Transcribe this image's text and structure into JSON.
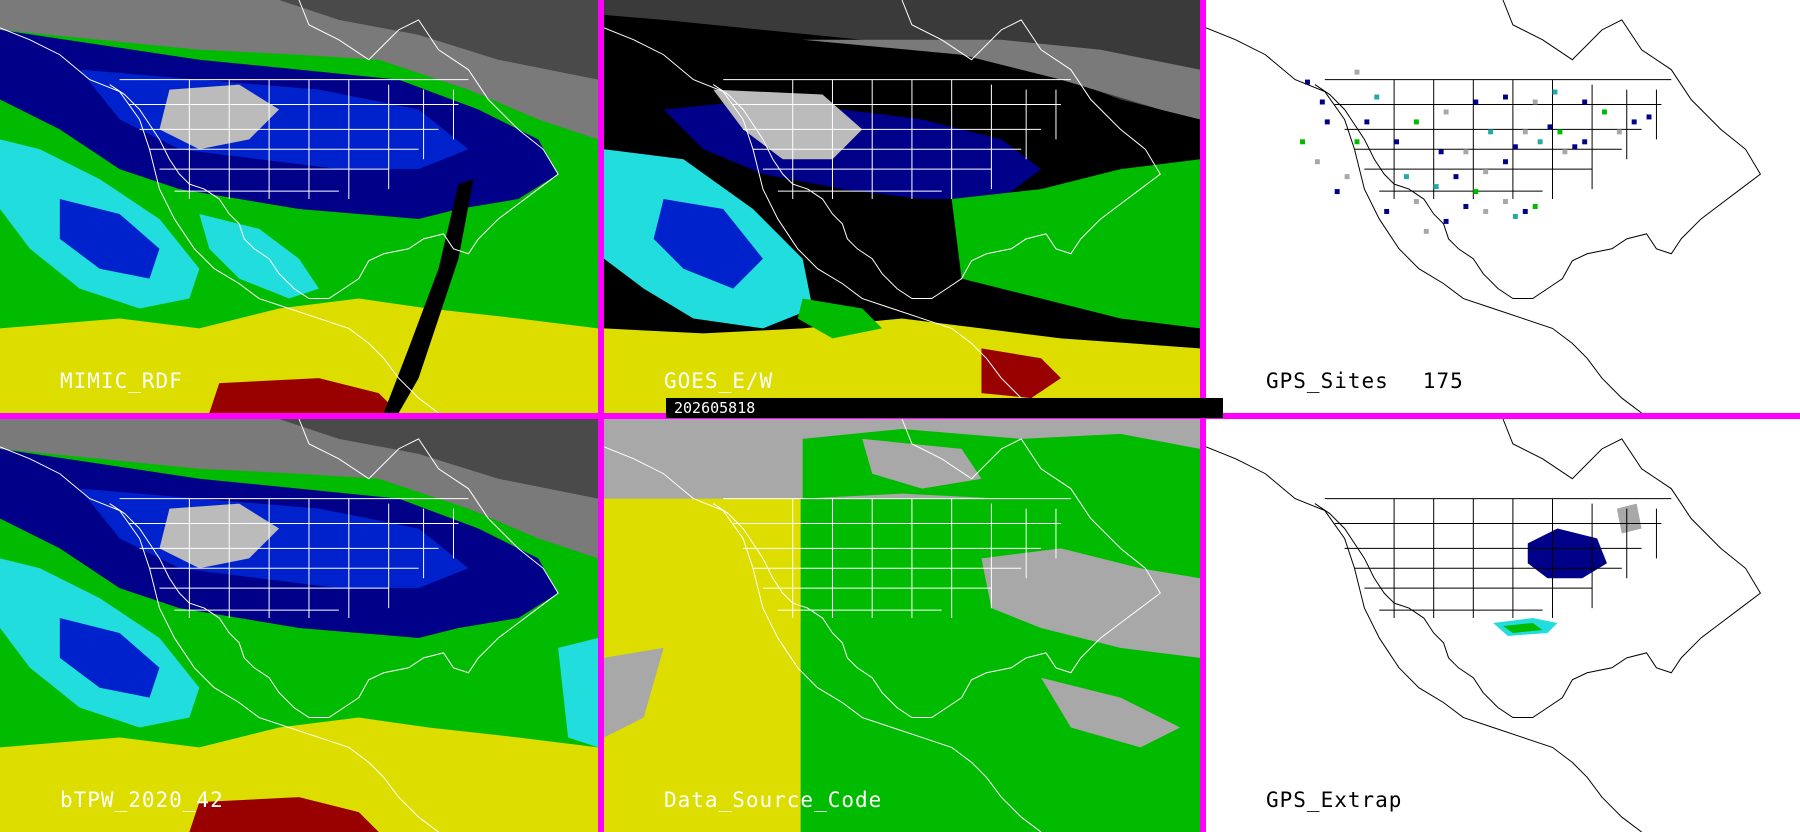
{
  "timestamp": "202605818",
  "colors": {
    "divider": "#ff00ff",
    "snow_gray": "#bbbbbb",
    "navy": "#000088",
    "blue": "#0022cc",
    "cyan": "#22dddd",
    "green": "#00bb00",
    "yellow": "#dddd00",
    "dark_red": "#990000",
    "data_gray": "#a8a8a8",
    "data_yellow": "#dddd00",
    "data_green": "#00bb00"
  },
  "panels": {
    "mimic": {
      "label": "MIMIC_RDF"
    },
    "goes": {
      "label": "GOES_E/W"
    },
    "gps_sites": {
      "label": "GPS_Sites",
      "count": "175"
    },
    "btpw": {
      "label": "bTPW_2020_42"
    },
    "data_source": {
      "label": "Data_Source_Code"
    },
    "gps_extrap": {
      "label": "GPS_Extrap"
    }
  }
}
